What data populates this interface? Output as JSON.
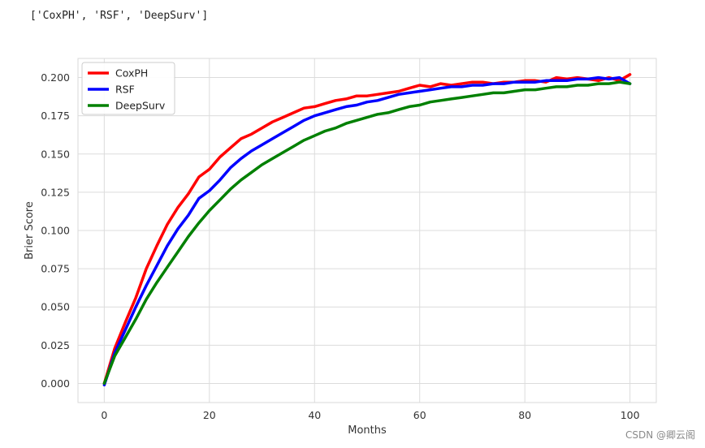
{
  "output_text": "['CoxPH', 'RSF', 'DeepSurv']",
  "watermark": "CSDN @卿云阁",
  "chart_data": {
    "type": "line",
    "title": "",
    "xlabel": "Months",
    "ylabel": "Brier Score",
    "xlim": [
      -5,
      105
    ],
    "ylim": [
      -0.0125,
      0.2125
    ],
    "xticks": [
      0,
      20,
      40,
      60,
      80,
      100
    ],
    "yticks": [
      0.0,
      0.025,
      0.05,
      0.075,
      0.1,
      0.125,
      0.15,
      0.175,
      0.2
    ],
    "xtick_labels": [
      "0",
      "20",
      "40",
      "60",
      "80",
      "100"
    ],
    "ytick_labels": [
      "0.000",
      "0.025",
      "0.050",
      "0.075",
      "0.100",
      "0.125",
      "0.150",
      "0.175",
      "0.200"
    ],
    "grid": true,
    "legend_position": "upper-left",
    "x": [
      0,
      2,
      4,
      6,
      8,
      10,
      12,
      14,
      16,
      18,
      20,
      22,
      24,
      26,
      28,
      30,
      32,
      34,
      36,
      38,
      40,
      42,
      44,
      46,
      48,
      50,
      52,
      54,
      56,
      58,
      60,
      62,
      64,
      66,
      68,
      70,
      72,
      74,
      76,
      78,
      80,
      82,
      84,
      86,
      88,
      90,
      92,
      94,
      96,
      98,
      100
    ],
    "series": [
      {
        "name": "CoxPH",
        "color": "#ff0000",
        "values": [
          0.0,
          0.023,
          0.04,
          0.056,
          0.075,
          0.09,
          0.104,
          0.115,
          0.124,
          0.135,
          0.14,
          0.148,
          0.154,
          0.16,
          0.163,
          0.167,
          0.171,
          0.174,
          0.177,
          0.18,
          0.181,
          0.183,
          0.185,
          0.186,
          0.188,
          0.188,
          0.189,
          0.19,
          0.191,
          0.193,
          0.195,
          0.194,
          0.196,
          0.195,
          0.196,
          0.197,
          0.197,
          0.196,
          0.197,
          0.197,
          0.198,
          0.198,
          0.197,
          0.2,
          0.199,
          0.2,
          0.199,
          0.198,
          0.2,
          0.198,
          0.202
        ]
      },
      {
        "name": "RSF",
        "color": "#0000ff",
        "values": [
          -0.001,
          0.02,
          0.035,
          0.05,
          0.064,
          0.077,
          0.09,
          0.101,
          0.11,
          0.121,
          0.126,
          0.133,
          0.141,
          0.147,
          0.152,
          0.156,
          0.16,
          0.164,
          0.168,
          0.172,
          0.175,
          0.177,
          0.179,
          0.181,
          0.182,
          0.184,
          0.185,
          0.187,
          0.189,
          0.19,
          0.191,
          0.192,
          0.193,
          0.194,
          0.194,
          0.195,
          0.195,
          0.196,
          0.196,
          0.197,
          0.197,
          0.197,
          0.198,
          0.198,
          0.198,
          0.199,
          0.199,
          0.2,
          0.199,
          0.2,
          0.196
        ]
      },
      {
        "name": "DeepSurv",
        "color": "#008000",
        "values": [
          0.0,
          0.018,
          0.03,
          0.042,
          0.055,
          0.066,
          0.076,
          0.086,
          0.096,
          0.105,
          0.113,
          0.12,
          0.127,
          0.133,
          0.138,
          0.143,
          0.147,
          0.151,
          0.155,
          0.159,
          0.162,
          0.165,
          0.167,
          0.17,
          0.172,
          0.174,
          0.176,
          0.177,
          0.179,
          0.181,
          0.182,
          0.184,
          0.185,
          0.186,
          0.187,
          0.188,
          0.189,
          0.19,
          0.19,
          0.191,
          0.192,
          0.192,
          0.193,
          0.194,
          0.194,
          0.195,
          0.195,
          0.196,
          0.196,
          0.197,
          0.196
        ]
      }
    ]
  }
}
